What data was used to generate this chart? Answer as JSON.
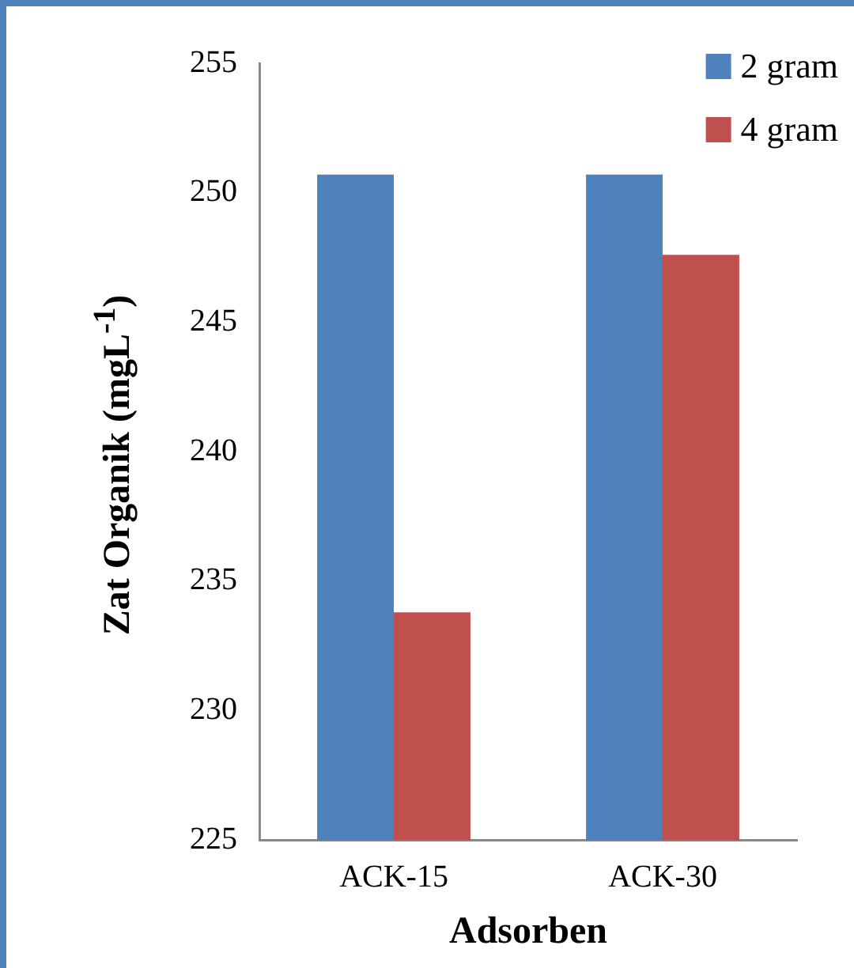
{
  "chart_data": {
    "type": "bar",
    "xlabel": "Adsorben",
    "ylabel": "Zat Organik (mgL$^{-1}$)",
    "categories": [
      "ACK-15",
      "ACK-30"
    ],
    "series": [
      {
        "name": "2 gram",
        "color": "#4f81bd",
        "values": [
          250.7,
          250.7
        ]
      },
      {
        "name": "4 gram",
        "color": "#c0504d",
        "values": [
          233.8,
          247.6
        ]
      }
    ],
    "ylim": [
      225,
      255
    ],
    "yticks": [
      225,
      230,
      235,
      240,
      245,
      250,
      255
    ],
    "grid": false,
    "legend": "top right"
  }
}
